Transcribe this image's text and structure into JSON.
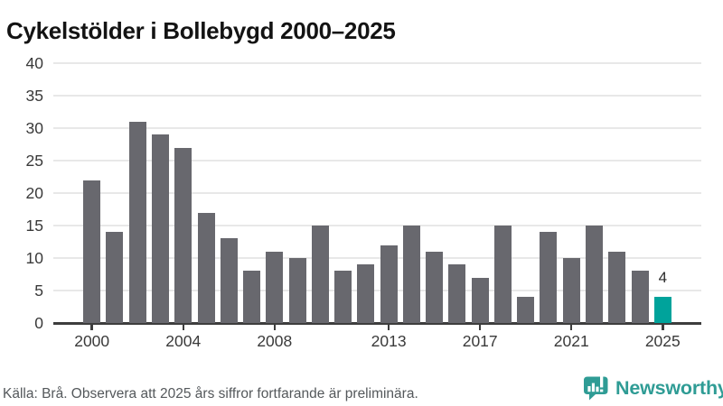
{
  "title": "Cykelstölder i Bollebygd 2000–2025",
  "chart_data": {
    "type": "bar",
    "title": "Cykelstölder i Bollebygd 2000–2025",
    "categories": [
      "2000",
      "2001",
      "2002",
      "2003",
      "2004",
      "2005",
      "2006",
      "2007",
      "2008",
      "2009",
      "2010",
      "2011",
      "2012",
      "2013",
      "2014",
      "2015",
      "2016",
      "2017",
      "2018",
      "2019",
      "2020",
      "2021",
      "2022",
      "2023",
      "2024",
      "2025"
    ],
    "values": [
      22,
      14,
      31,
      29,
      27,
      17,
      13,
      8,
      11,
      10,
      15,
      8,
      9,
      12,
      15,
      11,
      9,
      7,
      15,
      4,
      14,
      10,
      15,
      11,
      8,
      4
    ],
    "xlabel": "",
    "ylabel": "",
    "ylim": [
      0,
      40
    ],
    "ytick_step": 5,
    "ytick_labels": [
      "0",
      "5",
      "10",
      "15",
      "20",
      "25",
      "30",
      "35",
      "40"
    ],
    "xtick_labels": [
      "2000",
      "2004",
      "2008",
      "2013",
      "2017",
      "2021",
      "2025"
    ],
    "grid": true,
    "legend": false,
    "bar_color": "#68686e",
    "highlight_color": "#00a39b",
    "highlight_category": "2025",
    "value_labels": [
      {
        "category": "2025",
        "text": "4"
      }
    ]
  },
  "footer": {
    "source": "Källa: Brå. Observera att 2025 års siffror fortfarande är preliminära."
  },
  "branding": {
    "wordmark": "Newsworthy",
    "color": "#2f9c95",
    "icon": "newsworthy-bar-chart-bubble-icon"
  }
}
